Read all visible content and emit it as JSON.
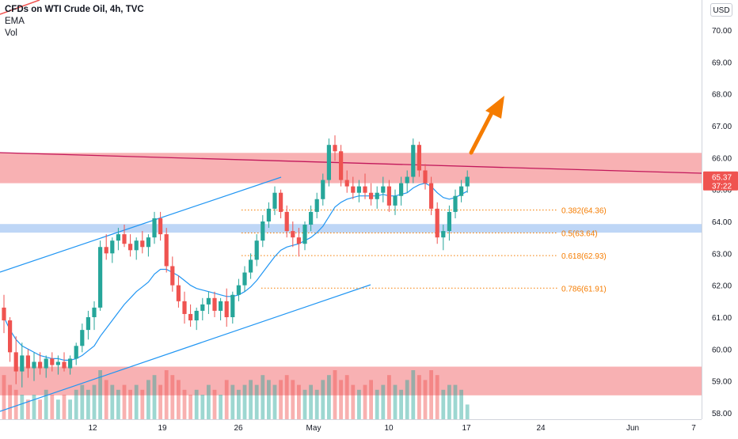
{
  "header": {
    "title": "CFDs on WTI Crude Oil, 4h, TVC",
    "indicators": [
      "EMA",
      "Vol"
    ],
    "currency": "USD"
  },
  "price_badge": {
    "price": "65.37",
    "countdown": "37:22"
  },
  "colors": {
    "candle_up": "#26a69a",
    "candle_down": "#ef5350",
    "ema": "#2196f3",
    "channel": "#2196f3",
    "zone_red": "#f7a8ab",
    "zone_blue": "#b3cff5",
    "trendline": "#c2185b",
    "fib": "#f57c00",
    "arrow": "#f57c00",
    "badge": "#ef5350"
  },
  "chart_data": {
    "type": "candlestick",
    "title": "CFDs on WTI Crude Oil, 4h, TVC",
    "ylim": [
      57.8,
      70.7
    ],
    "y_ticks": [
      "70.00",
      "69.00",
      "68.00",
      "67.00",
      "66.00",
      "65.00",
      "64.00",
      "63.00",
      "62.00",
      "61.00",
      "60.00",
      "59.00",
      "58.00"
    ],
    "x_ticks": [
      "12",
      "19",
      "26",
      "May",
      "10",
      "17",
      "24",
      "Jun",
      "7"
    ],
    "last_price": 65.37,
    "fibonacci_levels": [
      {
        "label": "0.382(64.36)",
        "ratio": 0.382,
        "value": 64.36
      },
      {
        "label": "0.5(63.64)",
        "ratio": 0.5,
        "value": 63.64
      },
      {
        "label": "0.618(62.93)",
        "ratio": 0.618,
        "value": 62.93
      },
      {
        "label": "0.786(61.91)",
        "ratio": 0.786,
        "value": 61.91
      }
    ],
    "zones": [
      {
        "name": "resistance",
        "from": 65.2,
        "to": 66.15,
        "color": "red"
      },
      {
        "name": "support",
        "from": 63.65,
        "to": 63.92,
        "color": "blue"
      },
      {
        "name": "volume-area",
        "from": 58.55,
        "to": 59.45,
        "color": "red"
      }
    ],
    "candles": [
      {
        "o": 61.3,
        "h": 61.7,
        "l": 60.5,
        "c": 60.9
      },
      {
        "o": 60.9,
        "h": 61.0,
        "l": 59.6,
        "c": 59.9
      },
      {
        "o": 59.9,
        "h": 60.4,
        "l": 58.9,
        "c": 59.3
      },
      {
        "o": 59.3,
        "h": 60.2,
        "l": 58.8,
        "c": 59.8
      },
      {
        "o": 59.8,
        "h": 60.0,
        "l": 59.1,
        "c": 59.4
      },
      {
        "o": 59.4,
        "h": 59.9,
        "l": 59.0,
        "c": 59.6
      },
      {
        "o": 59.6,
        "h": 59.9,
        "l": 59.2,
        "c": 59.4
      },
      {
        "o": 59.4,
        "h": 59.8,
        "l": 59.1,
        "c": 59.7
      },
      {
        "o": 59.7,
        "h": 59.9,
        "l": 59.3,
        "c": 59.5
      },
      {
        "o": 59.5,
        "h": 59.8,
        "l": 59.2,
        "c": 59.6
      },
      {
        "o": 59.6,
        "h": 59.9,
        "l": 59.3,
        "c": 59.4
      },
      {
        "o": 59.4,
        "h": 59.8,
        "l": 59.2,
        "c": 59.7
      },
      {
        "o": 59.7,
        "h": 60.2,
        "l": 59.5,
        "c": 60.1
      },
      {
        "o": 60.1,
        "h": 60.8,
        "l": 59.9,
        "c": 60.6
      },
      {
        "o": 60.6,
        "h": 61.2,
        "l": 60.3,
        "c": 61.0
      },
      {
        "o": 61.0,
        "h": 61.5,
        "l": 60.6,
        "c": 61.3
      },
      {
        "o": 61.3,
        "h": 63.4,
        "l": 61.2,
        "c": 63.2
      },
      {
        "o": 63.2,
        "h": 63.6,
        "l": 62.8,
        "c": 63.0
      },
      {
        "o": 63.0,
        "h": 63.5,
        "l": 62.7,
        "c": 63.4
      },
      {
        "o": 63.4,
        "h": 63.8,
        "l": 63.1,
        "c": 63.6
      },
      {
        "o": 63.6,
        "h": 63.9,
        "l": 63.2,
        "c": 63.3
      },
      {
        "o": 63.3,
        "h": 63.6,
        "l": 62.9,
        "c": 63.1
      },
      {
        "o": 63.1,
        "h": 63.5,
        "l": 62.8,
        "c": 63.4
      },
      {
        "o": 63.4,
        "h": 63.7,
        "l": 63.0,
        "c": 63.2
      },
      {
        "o": 63.2,
        "h": 63.6,
        "l": 62.9,
        "c": 63.5
      },
      {
        "o": 63.5,
        "h": 64.3,
        "l": 63.3,
        "c": 64.1
      },
      {
        "o": 64.1,
        "h": 64.3,
        "l": 63.4,
        "c": 63.6
      },
      {
        "o": 63.6,
        "h": 63.8,
        "l": 62.4,
        "c": 62.6
      },
      {
        "o": 62.6,
        "h": 62.9,
        "l": 61.8,
        "c": 62.0
      },
      {
        "o": 62.0,
        "h": 62.3,
        "l": 61.3,
        "c": 61.5
      },
      {
        "o": 61.5,
        "h": 61.8,
        "l": 60.8,
        "c": 61.1
      },
      {
        "o": 61.1,
        "h": 61.4,
        "l": 60.7,
        "c": 60.9
      },
      {
        "o": 60.9,
        "h": 61.3,
        "l": 60.6,
        "c": 61.2
      },
      {
        "o": 61.2,
        "h": 61.6,
        "l": 60.9,
        "c": 61.4
      },
      {
        "o": 61.4,
        "h": 61.8,
        "l": 61.1,
        "c": 61.6
      },
      {
        "o": 61.6,
        "h": 61.8,
        "l": 61.0,
        "c": 61.2
      },
      {
        "o": 61.2,
        "h": 61.6,
        "l": 60.9,
        "c": 61.5
      },
      {
        "o": 61.5,
        "h": 61.9,
        "l": 60.7,
        "c": 61.0
      },
      {
        "o": 61.0,
        "h": 61.8,
        "l": 60.8,
        "c": 61.7
      },
      {
        "o": 61.7,
        "h": 62.2,
        "l": 61.5,
        "c": 62.0
      },
      {
        "o": 62.0,
        "h": 62.6,
        "l": 61.8,
        "c": 62.4
      },
      {
        "o": 62.4,
        "h": 63.0,
        "l": 62.2,
        "c": 62.8
      },
      {
        "o": 62.8,
        "h": 63.6,
        "l": 62.6,
        "c": 63.4
      },
      {
        "o": 63.4,
        "h": 64.2,
        "l": 63.2,
        "c": 64.0
      },
      {
        "o": 64.0,
        "h": 64.6,
        "l": 63.8,
        "c": 64.4
      },
      {
        "o": 64.4,
        "h": 65.1,
        "l": 64.2,
        "c": 64.9
      },
      {
        "o": 64.9,
        "h": 65.0,
        "l": 64.1,
        "c": 64.3
      },
      {
        "o": 64.3,
        "h": 64.5,
        "l": 63.5,
        "c": 63.7
      },
      {
        "o": 63.7,
        "h": 64.0,
        "l": 63.2,
        "c": 63.5
      },
      {
        "o": 63.5,
        "h": 63.8,
        "l": 62.9,
        "c": 63.3
      },
      {
        "o": 63.3,
        "h": 64.0,
        "l": 63.1,
        "c": 63.9
      },
      {
        "o": 63.9,
        "h": 64.5,
        "l": 63.7,
        "c": 64.3
      },
      {
        "o": 64.3,
        "h": 64.9,
        "l": 64.1,
        "c": 64.7
      },
      {
        "o": 64.7,
        "h": 65.5,
        "l": 64.5,
        "c": 65.3
      },
      {
        "o": 65.3,
        "h": 66.6,
        "l": 65.1,
        "c": 66.4
      },
      {
        "o": 66.4,
        "h": 66.7,
        "l": 65.9,
        "c": 66.2
      },
      {
        "o": 66.2,
        "h": 66.4,
        "l": 65.1,
        "c": 65.3
      },
      {
        "o": 65.3,
        "h": 65.6,
        "l": 64.9,
        "c": 65.1
      },
      {
        "o": 65.1,
        "h": 65.4,
        "l": 64.7,
        "c": 64.9
      },
      {
        "o": 64.9,
        "h": 65.3,
        "l": 64.6,
        "c": 65.1
      },
      {
        "o": 65.1,
        "h": 65.5,
        "l": 64.7,
        "c": 64.9
      },
      {
        "o": 64.9,
        "h": 65.2,
        "l": 64.5,
        "c": 64.7
      },
      {
        "o": 64.7,
        "h": 65.1,
        "l": 64.4,
        "c": 64.9
      },
      {
        "o": 64.9,
        "h": 65.4,
        "l": 64.6,
        "c": 65.1
      },
      {
        "o": 65.1,
        "h": 65.3,
        "l": 64.3,
        "c": 64.5
      },
      {
        "o": 64.5,
        "h": 65.0,
        "l": 64.2,
        "c": 64.8
      },
      {
        "o": 64.8,
        "h": 65.4,
        "l": 64.5,
        "c": 65.2
      },
      {
        "o": 65.2,
        "h": 65.6,
        "l": 64.9,
        "c": 65.4
      },
      {
        "o": 65.4,
        "h": 66.6,
        "l": 65.2,
        "c": 66.4
      },
      {
        "o": 66.4,
        "h": 66.5,
        "l": 65.4,
        "c": 65.6
      },
      {
        "o": 65.6,
        "h": 65.8,
        "l": 65.0,
        "c": 65.2
      },
      {
        "o": 65.2,
        "h": 65.4,
        "l": 64.2,
        "c": 64.4
      },
      {
        "o": 64.4,
        "h": 64.6,
        "l": 63.3,
        "c": 63.5
      },
      {
        "o": 63.5,
        "h": 63.9,
        "l": 63.1,
        "c": 63.7
      },
      {
        "o": 63.7,
        "h": 64.5,
        "l": 63.4,
        "c": 64.3
      },
      {
        "o": 64.3,
        "h": 65.0,
        "l": 64.1,
        "c": 64.8
      },
      {
        "o": 64.8,
        "h": 65.3,
        "l": 64.6,
        "c": 65.1
      },
      {
        "o": 65.1,
        "h": 65.6,
        "l": 64.9,
        "c": 65.4
      }
    ],
    "ema": [
      61.0,
      60.6,
      60.3,
      60.1,
      60.0,
      59.9,
      59.8,
      59.75,
      59.7,
      59.7,
      59.65,
      59.65,
      59.7,
      59.8,
      59.95,
      60.1,
      60.4,
      60.65,
      60.9,
      61.15,
      61.4,
      61.6,
      61.8,
      61.95,
      62.1,
      62.35,
      62.5,
      62.5,
      62.4,
      62.3,
      62.15,
      62.0,
      61.9,
      61.85,
      61.8,
      61.75,
      61.7,
      61.65,
      61.65,
      61.7,
      61.8,
      61.95,
      62.15,
      62.4,
      62.65,
      62.9,
      63.1,
      63.2,
      63.25,
      63.3,
      63.4,
      63.5,
      63.65,
      63.85,
      64.15,
      64.45,
      64.6,
      64.7,
      64.75,
      64.8,
      64.8,
      64.8,
      64.8,
      64.85,
      64.8,
      64.8,
      64.85,
      64.9,
      65.05,
      65.15,
      65.2,
      65.1,
      64.9,
      64.75,
      64.7,
      64.75,
      64.85,
      64.95
    ],
    "volume": [
      0.9,
      0.7,
      0.6,
      0.5,
      0.4,
      0.5,
      0.4,
      0.6,
      0.5,
      0.4,
      0.5,
      0.4,
      0.6,
      0.7,
      0.6,
      0.7,
      1.0,
      0.8,
      0.7,
      0.6,
      0.7,
      0.6,
      0.7,
      0.6,
      0.8,
      0.9,
      0.7,
      1.0,
      0.9,
      0.8,
      0.6,
      0.5,
      0.6,
      0.5,
      0.7,
      0.6,
      0.5,
      0.8,
      0.7,
      0.6,
      0.7,
      0.8,
      0.7,
      0.9,
      0.8,
      0.7,
      0.8,
      0.9,
      0.8,
      0.7,
      0.6,
      0.7,
      0.6,
      0.8,
      0.9,
      1.0,
      0.8,
      0.9,
      0.7,
      0.6,
      0.7,
      0.8,
      0.6,
      0.7,
      0.9,
      0.7,
      0.6,
      0.8,
      1.0,
      0.9,
      0.8,
      1.0,
      0.9,
      0.6,
      0.7,
      0.7,
      0.6,
      0.3
    ]
  }
}
